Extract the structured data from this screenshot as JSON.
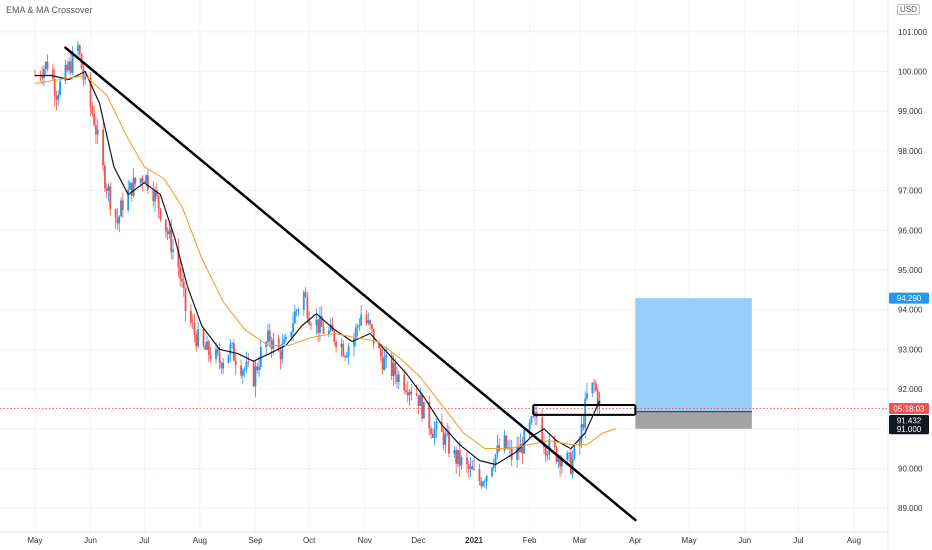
{
  "header": {
    "indicator_title": "EMA & MA Crossover",
    "currency": "USD"
  },
  "colors": {
    "up": "#2196f3",
    "down": "#ef5350",
    "ema": "#131722",
    "ma": "#f7a12f",
    "trendline": "#000000",
    "target_zone": "#90caf9",
    "stop_zone": "#9e9e9e",
    "price_line": "#ef5350"
  },
  "chart_data": {
    "type": "candlestick",
    "x_ticks": [
      {
        "label": "May",
        "date": "2020-05-01"
      },
      {
        "label": "Jun",
        "date": "2020-06-01"
      },
      {
        "label": "Jul",
        "date": "2020-07-01"
      },
      {
        "label": "Aug",
        "date": "2020-08-01"
      },
      {
        "label": "Sep",
        "date": "2020-09-01"
      },
      {
        "label": "Oct",
        "date": "2020-10-01"
      },
      {
        "label": "Nov",
        "date": "2020-11-01"
      },
      {
        "label": "Dec",
        "date": "2020-12-01"
      },
      {
        "label": "2021",
        "date": "2021-01-01"
      },
      {
        "label": "Feb",
        "date": "2021-02-01"
      },
      {
        "label": "Mar",
        "date": "2021-03-01"
      },
      {
        "label": "Apr",
        "date": "2021-04-01"
      },
      {
        "label": "May",
        "date": "2021-05-01"
      },
      {
        "label": "Jun",
        "date": "2021-06-01"
      },
      {
        "label": "Jul",
        "date": "2021-07-01"
      },
      {
        "label": "Aug",
        "date": "2021-08-01"
      }
    ],
    "y_ticks": [
      "101.000",
      "100.000",
      "99.000",
      "98.000",
      "97.000",
      "96.000",
      "95.000",
      "94.000",
      "93.000",
      "92.000",
      "91.000",
      "90.000",
      "89.000"
    ],
    "ylim": [
      88.4,
      101.6
    ],
    "price_path": [
      [
        "2020-05-01",
        99.9
      ],
      [
        "2020-05-08",
        100.2
      ],
      [
        "2020-05-13",
        99.5
      ],
      [
        "2020-05-18",
        99.9
      ],
      [
        "2020-05-25",
        100.6
      ],
      [
        "2020-05-29",
        99.6
      ],
      [
        "2020-06-03",
        98.8
      ],
      [
        "2020-06-08",
        97.5
      ],
      [
        "2020-06-12",
        96.8
      ],
      [
        "2020-06-16",
        96.2
      ],
      [
        "2020-06-19",
        96.7
      ],
      [
        "2020-06-24",
        97.1
      ],
      [
        "2020-07-01",
        97.4
      ],
      [
        "2020-07-06",
        97.0
      ],
      [
        "2020-07-10",
        96.5
      ],
      [
        "2020-07-15",
        95.8
      ],
      [
        "2020-07-20",
        95.1
      ],
      [
        "2020-07-24",
        94.0
      ],
      [
        "2020-07-29",
        93.4
      ],
      [
        "2020-08-03",
        93.0
      ],
      [
        "2020-08-07",
        92.9
      ],
      [
        "2020-08-12",
        92.7
      ],
      [
        "2020-08-18",
        93.0
      ],
      [
        "2020-08-24",
        92.6
      ],
      [
        "2020-08-31",
        92.3
      ],
      [
        "2020-09-04",
        92.9
      ],
      [
        "2020-09-09",
        93.3
      ],
      [
        "2020-09-14",
        92.9
      ],
      [
        "2020-09-18",
        93.1
      ],
      [
        "2020-09-23",
        93.9
      ],
      [
        "2020-09-28",
        94.4
      ],
      [
        "2020-10-01",
        93.9
      ],
      [
        "2020-10-06",
        93.6
      ],
      [
        "2020-10-12",
        93.4
      ],
      [
        "2020-10-16",
        93.3
      ],
      [
        "2020-10-21",
        93.0
      ],
      [
        "2020-10-26",
        93.3
      ],
      [
        "2020-10-30",
        93.9
      ],
      [
        "2020-11-04",
        93.5
      ],
      [
        "2020-11-09",
        92.9
      ],
      [
        "2020-11-13",
        92.6
      ],
      [
        "2020-11-18",
        92.4
      ],
      [
        "2020-11-23",
        92.2
      ],
      [
        "2020-11-30",
        91.9
      ],
      [
        "2020-12-04",
        91.4
      ],
      [
        "2020-12-09",
        91.0
      ],
      [
        "2020-12-15",
        90.8
      ],
      [
        "2020-12-21",
        90.3
      ],
      [
        "2020-12-28",
        90.0
      ],
      [
        "2021-01-04",
        89.7
      ],
      [
        "2021-01-08",
        89.9
      ],
      [
        "2021-01-12",
        90.3
      ],
      [
        "2021-01-18",
        90.6
      ],
      [
        "2021-01-22",
        90.3
      ],
      [
        "2021-01-27",
        90.5
      ],
      [
        "2021-02-01",
        91.0
      ],
      [
        "2021-02-05",
        91.3
      ],
      [
        "2021-02-10",
        90.6
      ],
      [
        "2021-02-15",
        90.4
      ],
      [
        "2021-02-19",
        90.3
      ],
      [
        "2021-02-24",
        90.1
      ],
      [
        "2021-03-01",
        90.7
      ],
      [
        "2021-03-05",
        91.8
      ],
      [
        "2021-03-09",
        92.1
      ],
      [
        "2021-03-12",
        91.6
      ]
    ],
    "series": [
      {
        "key": "ema",
        "points": [
          [
            "2020-05-01",
            99.9
          ],
          [
            "2020-05-10",
            99.9
          ],
          [
            "2020-05-20",
            99.8
          ],
          [
            "2020-05-29",
            100.0
          ],
          [
            "2020-06-06",
            99.2
          ],
          [
            "2020-06-14",
            97.6
          ],
          [
            "2020-06-22",
            96.9
          ],
          [
            "2020-07-01",
            97.2
          ],
          [
            "2020-07-10",
            96.9
          ],
          [
            "2020-07-18",
            95.8
          ],
          [
            "2020-07-25",
            94.6
          ],
          [
            "2020-08-02",
            93.6
          ],
          [
            "2020-08-12",
            93.0
          ],
          [
            "2020-08-22",
            92.9
          ],
          [
            "2020-08-31",
            92.7
          ],
          [
            "2020-09-09",
            92.9
          ],
          [
            "2020-09-18",
            93.1
          ],
          [
            "2020-09-27",
            93.6
          ],
          [
            "2020-10-05",
            93.9
          ],
          [
            "2020-10-15",
            93.5
          ],
          [
            "2020-10-25",
            93.2
          ],
          [
            "2020-11-04",
            93.4
          ],
          [
            "2020-11-14",
            92.9
          ],
          [
            "2020-11-24",
            92.4
          ],
          [
            "2020-12-04",
            91.8
          ],
          [
            "2020-12-14",
            91.1
          ],
          [
            "2020-12-24",
            90.6
          ],
          [
            "2021-01-04",
            90.2
          ],
          [
            "2021-01-13",
            90.1
          ],
          [
            "2021-01-24",
            90.4
          ],
          [
            "2021-02-02",
            90.8
          ],
          [
            "2021-02-09",
            91.0
          ],
          [
            "2021-02-16",
            90.7
          ],
          [
            "2021-02-24",
            90.5
          ],
          [
            "2021-03-04",
            90.9
          ],
          [
            "2021-03-12",
            91.7
          ]
        ]
      },
      {
        "key": "ma",
        "points": [
          [
            "2020-05-01",
            99.7
          ],
          [
            "2020-05-15",
            99.8
          ],
          [
            "2020-05-29",
            99.9
          ],
          [
            "2020-06-10",
            99.4
          ],
          [
            "2020-06-22",
            98.3
          ],
          [
            "2020-07-01",
            97.6
          ],
          [
            "2020-07-12",
            97.3
          ],
          [
            "2020-07-22",
            96.6
          ],
          [
            "2020-08-02",
            95.3
          ],
          [
            "2020-08-14",
            94.2
          ],
          [
            "2020-08-26",
            93.5
          ],
          [
            "2020-09-08",
            93.1
          ],
          [
            "2020-09-20",
            93.1
          ],
          [
            "2020-10-02",
            93.3
          ],
          [
            "2020-10-15",
            93.4
          ],
          [
            "2020-10-27",
            93.3
          ],
          [
            "2020-11-08",
            93.2
          ],
          [
            "2020-11-20",
            92.8
          ],
          [
            "2020-12-02",
            92.3
          ],
          [
            "2020-12-14",
            91.6
          ],
          [
            "2020-12-26",
            90.9
          ],
          [
            "2021-01-07",
            90.5
          ],
          [
            "2021-01-20",
            90.5
          ],
          [
            "2021-02-01",
            90.6
          ],
          [
            "2021-02-12",
            90.7
          ],
          [
            "2021-02-24",
            90.6
          ],
          [
            "2021-03-05",
            90.6
          ],
          [
            "2021-03-14",
            90.9
          ],
          [
            "2021-03-21",
            91.0
          ]
        ]
      }
    ],
    "trendline": {
      "from": [
        "2020-05-18",
        100.6
      ],
      "to": [
        "2021-04-01",
        88.7
      ]
    },
    "breakout_box": {
      "from": "2021-02-03",
      "to": "2021-04-01",
      "top": 91.55,
      "bottom": 91.4
    },
    "target_zone": {
      "from": "2021-04-01",
      "to": "2021-06-05",
      "top": 94.29,
      "bottom": 91.432
    },
    "stop_zone": {
      "from": "2021-04-01",
      "to": "2021-06-05",
      "top": 91.432,
      "bottom": 91.0
    },
    "current_price_line": 91.51,
    "price_labels": [
      {
        "text": "94.290",
        "value": 94.29,
        "bg": "#2196f3",
        "fg": "#ffffff"
      },
      {
        "text": "05:18:03",
        "value": 91.51,
        "bg": "#ef5350",
        "fg": "#ffffff"
      },
      {
        "text": "91.432",
        "value": 91.432,
        "bg": "#131722",
        "fg": "#ffffff"
      },
      {
        "text": "91.000",
        "value": 91.0,
        "bg": "#131722",
        "fg": "#ffffff"
      }
    ]
  }
}
